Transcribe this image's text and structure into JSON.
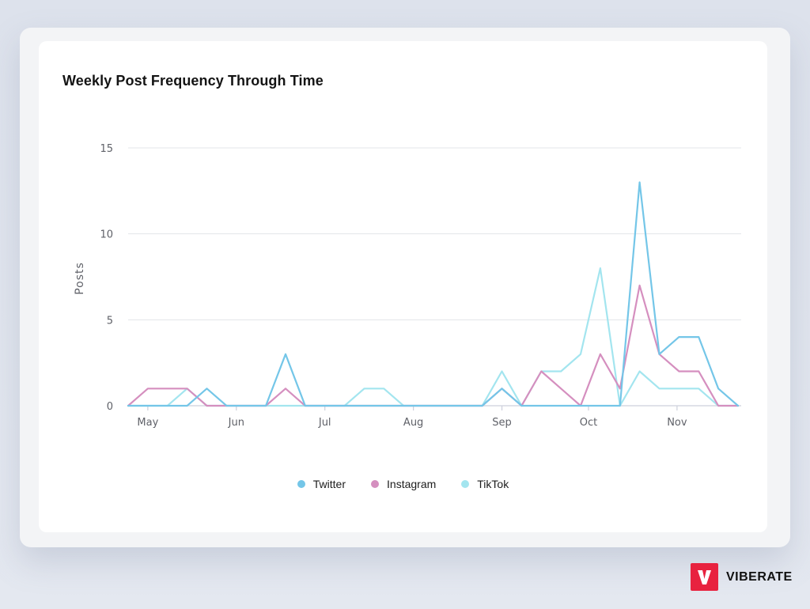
{
  "chart_data": {
    "type": "line",
    "title": "Weekly Post Frequency Through Time",
    "ylabel": "Posts",
    "xlabel": "",
    "ylim": [
      0,
      15
    ],
    "yticks": [
      0,
      5,
      10,
      15
    ],
    "grid": true,
    "legend_position": "bottom",
    "weeks": 31,
    "month_ticks": [
      {
        "label": "May",
        "week": 1
      },
      {
        "label": "Jun",
        "week": 5.5
      },
      {
        "label": "Jul",
        "week": 10
      },
      {
        "label": "Aug",
        "week": 14.5
      },
      {
        "label": "Sep",
        "week": 19
      },
      {
        "label": "Oct",
        "week": 23.4
      },
      {
        "label": "Nov",
        "week": 27.9
      }
    ],
    "series": [
      {
        "name": "Twitter",
        "color": "#74c6e8",
        "values": [
          0,
          0,
          0,
          0,
          1,
          0,
          0,
          0,
          3,
          0,
          0,
          0,
          0,
          0,
          0,
          0,
          0,
          0,
          0,
          1,
          0,
          0,
          0,
          0,
          0,
          0,
          13,
          3,
          4,
          4,
          1,
          0
        ]
      },
      {
        "name": "Instagram",
        "color": "#d58fbf",
        "values": [
          0,
          1,
          1,
          1,
          0,
          0,
          0,
          0,
          1,
          0,
          0,
          0,
          0,
          0,
          0,
          0,
          0,
          0,
          0,
          1,
          0,
          2,
          1,
          0,
          3,
          1,
          7,
          3,
          2,
          2,
          0,
          0
        ]
      },
      {
        "name": "TikTok",
        "color": "#a3e5ef",
        "values": [
          0,
          0,
          0,
          1,
          0,
          0,
          0,
          0,
          0,
          0,
          0,
          0,
          1,
          1,
          0,
          0,
          0,
          0,
          0,
          2,
          0,
          2,
          2,
          3,
          8,
          0,
          2,
          1,
          1,
          1,
          0,
          0
        ]
      }
    ]
  },
  "brand": {
    "name": "VIBERATE"
  }
}
